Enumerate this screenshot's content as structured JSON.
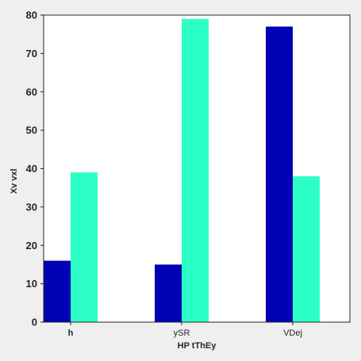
{
  "chart_data": {
    "type": "bar",
    "categories": [
      "h",
      "ySR",
      "VDej"
    ],
    "category_label_bold": [
      true,
      false,
      false
    ],
    "series": [
      {
        "values": [
          16,
          15,
          77
        ],
        "color": "#0000b4"
      },
      {
        "values": [
          39,
          79,
          38
        ],
        "color": "#2cffc6"
      }
    ],
    "xlabel": "HP tThEy",
    "ylabel": "Xv vxl",
    "ylim": [
      0,
      80
    ],
    "yticks": [
      0,
      10,
      20,
      30,
      40,
      50,
      60,
      70,
      80
    ],
    "grid": false,
    "legend": "none",
    "colors": {
      "background": "#efefef",
      "plot_area": "#ffffff",
      "axis": "#262626"
    }
  }
}
